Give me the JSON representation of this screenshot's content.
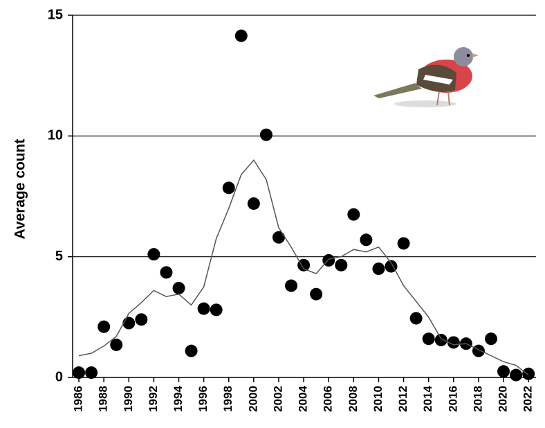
{
  "chart_data": {
    "type": "scatter",
    "y_label": "Average count",
    "x": [
      1986,
      1987,
      1988,
      1989,
      1990,
      1991,
      1992,
      1993,
      1994,
      1995,
      1996,
      1997,
      1998,
      1999,
      2000,
      2001,
      2002,
      2003,
      2004,
      2005,
      2006,
      2007,
      2008,
      2009,
      2010,
      2011,
      2012,
      2013,
      2014,
      2015,
      2016,
      2017,
      2018,
      2019,
      2020,
      2021,
      2022
    ],
    "series": [
      {
        "kind": "scatter",
        "color": "#000000",
        "values": [
          0.2,
          0.2,
          2.1,
          1.35,
          2.25,
          2.4,
          5.1,
          4.35,
          3.7,
          1.1,
          2.85,
          2.8,
          7.85,
          14.15,
          7.2,
          10.05,
          5.8,
          3.8,
          4.65,
          3.45,
          4.85,
          4.65,
          6.75,
          5.7,
          4.5,
          4.6,
          5.55,
          2.45,
          1.6,
          1.55,
          1.45,
          1.4,
          1.1,
          1.6,
          0.25,
          0.1,
          0.15
        ]
      },
      {
        "kind": "line",
        "color": "#555555",
        "values": [
          0.9,
          1.0,
          1.3,
          1.7,
          2.65,
          3.1,
          3.6,
          3.35,
          3.45,
          3.0,
          3.75,
          5.75,
          7.0,
          8.4,
          9.0,
          8.2,
          6.2,
          5.4,
          4.5,
          4.3,
          4.9,
          5.0,
          5.3,
          5.2,
          5.4,
          4.75,
          3.8,
          3.15,
          2.5,
          1.6,
          1.35,
          1.4,
          1.15,
          0.9,
          0.65,
          0.5,
          0.1
        ]
      }
    ],
    "xlim": [
      1985.5,
      2022.6
    ],
    "xticks": [
      1986,
      1988,
      1990,
      1992,
      1994,
      1996,
      1998,
      2000,
      2002,
      2004,
      2006,
      2008,
      2010,
      2012,
      2014,
      2016,
      2018,
      2020,
      2022
    ],
    "ylim": [
      0,
      15
    ],
    "yticks": [
      0,
      5,
      10,
      15
    ],
    "grid": true
  }
}
